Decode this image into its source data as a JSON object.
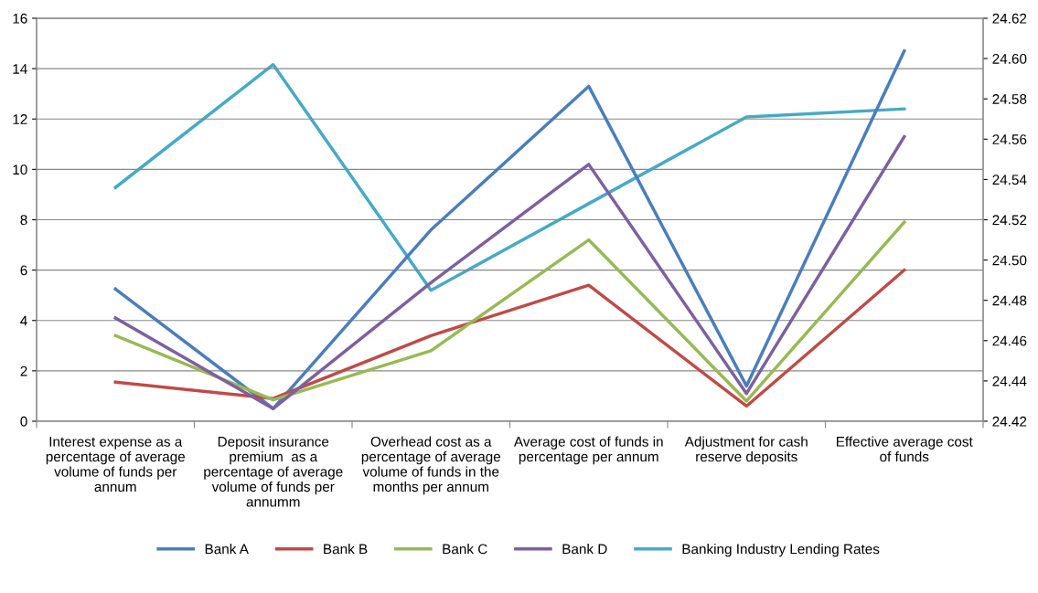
{
  "chart_data": {
    "type": "line",
    "categories": [
      "Interest expense as a percentage of average volume of funds per annum",
      "Deposit insurance premium  as a percentage of average volume of funds per annumm",
      "Overhead cost as a percentage of average volume of funds in the months per annum",
      "Average cost of funds in percentage per annum",
      "Adjustment for cash reserve deposits",
      "Effective average cost of funds"
    ],
    "series": [
      {
        "name": "Bank A",
        "color": "#4a7ebb",
        "values": [
          5.25,
          0.5,
          7.6,
          13.3,
          1.4,
          14.7
        ]
      },
      {
        "name": "Bank B",
        "color": "#be4b48",
        "values": [
          1.55,
          0.9,
          3.4,
          5.4,
          0.6,
          6.0
        ]
      },
      {
        "name": "Bank C",
        "color": "#98b954",
        "values": [
          3.4,
          0.85,
          2.8,
          7.2,
          0.8,
          7.9
        ]
      },
      {
        "name": "Bank D",
        "color": "#7d60a0",
        "values": [
          4.1,
          0.5,
          5.5,
          10.2,
          1.1,
          11.3
        ]
      },
      {
        "name": "Banking Industry Lending Rates",
        "color": "#46aac5",
        "axis": "y2",
        "values": [
          24.536,
          24.597,
          24.485,
          24.528,
          24.571,
          24.575
        ]
      }
    ],
    "ylim": [
      0,
      16
    ],
    "yticks": [
      0,
      2,
      4,
      6,
      8,
      10,
      12,
      14,
      16
    ],
    "y2lim": [
      24.42,
      24.62
    ],
    "y2ticks": [
      {
        "value": 24.42,
        "label": "24.42"
      },
      {
        "value": 24.44,
        "label": "24.44"
      },
      {
        "value": 24.46,
        "label": "24.46"
      },
      {
        "value": 24.48,
        "label": "24.48"
      },
      {
        "value": 24.5,
        "label": "24.50"
      },
      {
        "value": 24.52,
        "label": "24.52"
      },
      {
        "value": 24.54,
        "label": "24.54"
      },
      {
        "value": 24.56,
        "label": "24.56"
      },
      {
        "value": 24.58,
        "label": "24.58"
      },
      {
        "value": 24.6,
        "label": "24.60"
      },
      {
        "value": 24.62,
        "label": "24.62"
      }
    ],
    "grid": "y",
    "legend": "bottom",
    "marker": "none",
    "line_style": "solid"
  }
}
